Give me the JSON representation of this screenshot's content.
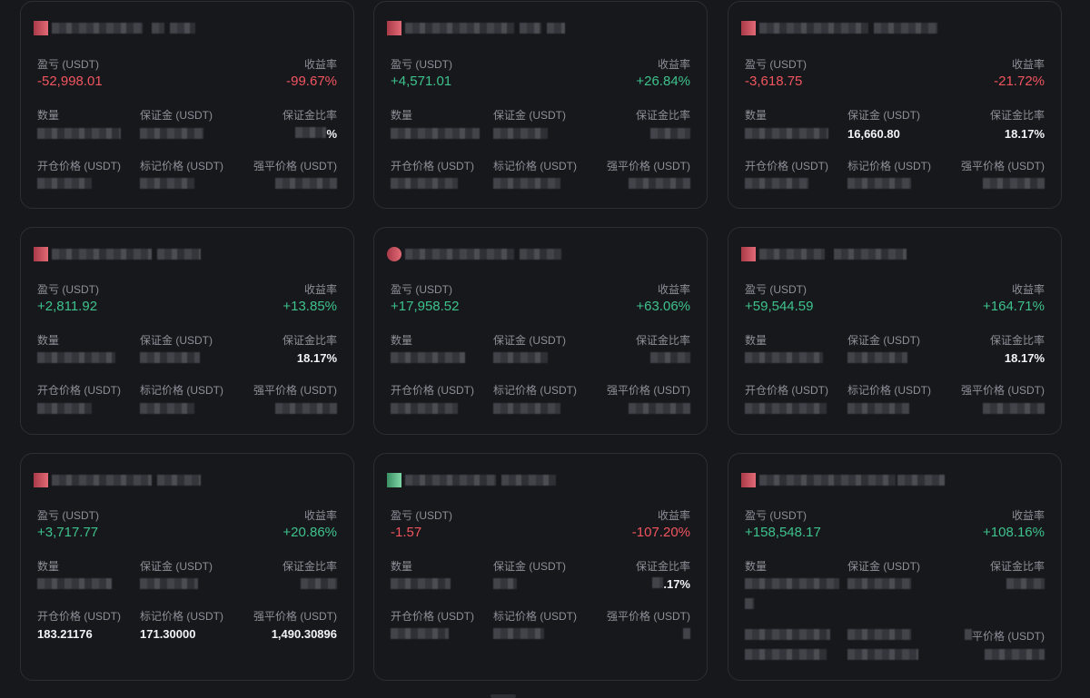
{
  "labels": {
    "pnl": "盈亏 (USDT)",
    "roe": "收益率",
    "qty": "数量",
    "margin": "保证金 (USDT)",
    "margin_ratio": "保证金比率",
    "entry": "开仓价格 (USDT)",
    "mark": "标记价格 (USDT)",
    "liq": "强平价格 (USDT)"
  },
  "colors": {
    "positive": "#3ec28c",
    "negative": "#f0555f",
    "background": "#17181c",
    "border": "#2c2e34"
  },
  "cards": [
    {
      "pnl": "-52,998.01",
      "roe": "-99.67%",
      "sign": "neg",
      "margin_ratio": "%",
      "entry": "",
      "mark": "",
      "liq": ""
    },
    {
      "pnl": "+4,571.01",
      "roe": "+26.84%",
      "sign": "pos",
      "margin_ratio": "",
      "entry": "",
      "mark": "",
      "liq": ""
    },
    {
      "pnl": "-3,618.75",
      "roe": "-21.72%",
      "sign": "neg",
      "margin": "16,660.80",
      "margin_ratio": "18.17%",
      "entry": "",
      "mark": "",
      "liq": ""
    },
    {
      "pnl": "+2,811.92",
      "roe": "+13.85%",
      "sign": "pos",
      "margin_ratio": "18.17%",
      "entry": "",
      "mark": "",
      "liq": ""
    },
    {
      "pnl": "+17,958.52",
      "roe": "+63.06%",
      "sign": "pos",
      "margin_ratio": "",
      "entry": "",
      "mark": "",
      "liq": ""
    },
    {
      "pnl": "+59,544.59",
      "roe": "+164.71%",
      "sign": "pos",
      "margin_ratio": "18.17%",
      "entry": "",
      "mark": "",
      "liq": ""
    },
    {
      "pnl": "+3,717.77",
      "roe": "+20.86%",
      "sign": "pos",
      "margin_ratio": "",
      "entry": "183.21176",
      "mark": "171.30000",
      "liq": "1,490.30896"
    },
    {
      "pnl": "-1.57",
      "roe": "-107.20%",
      "sign": "neg",
      "margin_ratio": ".17%",
      "entry": "",
      "mark": "",
      "liq": ""
    },
    {
      "pnl": "+158,548.17",
      "roe": "+108.16%",
      "sign": "pos",
      "margin_ratio": "",
      "liq_label_partial": "平价格 (USDT)",
      "entry": "",
      "mark": "",
      "liq": ""
    }
  ]
}
